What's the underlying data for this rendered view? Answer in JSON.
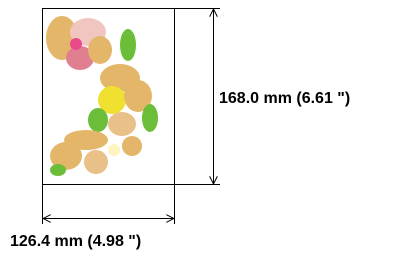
{
  "design_size": {
    "height_label": "168.0 mm (6.61 \")",
    "width_label": "126.4 mm (4.98 \")"
  }
}
